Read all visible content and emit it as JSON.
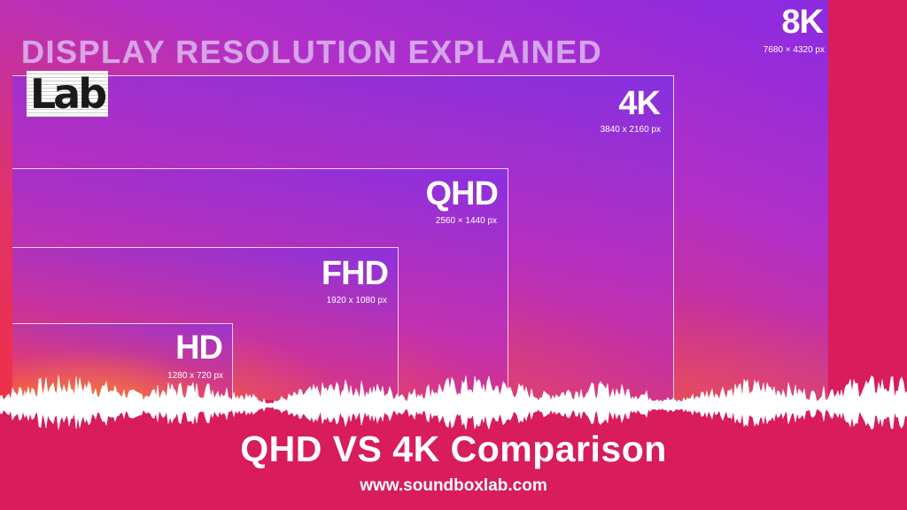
{
  "title": "DISPLAY RESOLUTION EXPLAINED",
  "logo_text": "Lab",
  "resolutions": [
    {
      "name": "8K",
      "pixels": "7680 × 4320 px"
    },
    {
      "name": "4K",
      "pixels": "3840 x 2160 px"
    },
    {
      "name": "QHD",
      "pixels": "2560 × 1440 px"
    },
    {
      "name": "FHD",
      "pixels": "1920 x 1080 px"
    },
    {
      "name": "HD",
      "pixels": "1280 x 720 px"
    }
  ],
  "headline": "QHD VS 4K Comparison",
  "website": "www.soundboxlab.com",
  "colors": {
    "background": "#d81c5c",
    "text": "#ffffff"
  }
}
